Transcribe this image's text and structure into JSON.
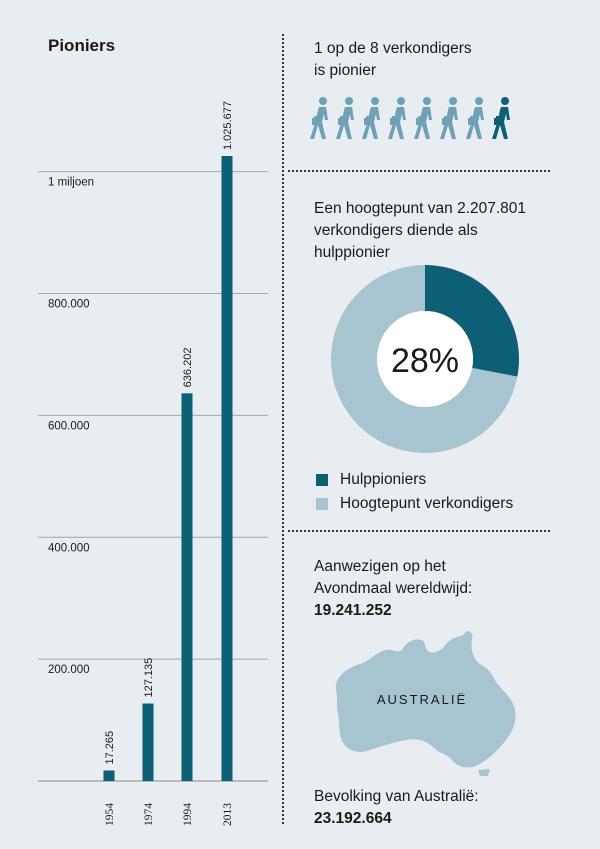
{
  "bar_section": {
    "title": "Pioniers"
  },
  "chart_data": [
    {
      "type": "bar",
      "title": "Pioniers",
      "categories": [
        "1954",
        "1974",
        "1994",
        "2013"
      ],
      "values": [
        17265,
        127135,
        636202,
        1025677
      ],
      "value_labels": [
        "17.265",
        "127.135",
        "636.202",
        "1.025.677"
      ],
      "y_ticks": [
        {
          "value": 200000,
          "label": "200.000"
        },
        {
          "value": 400000,
          "label": "400.000"
        },
        {
          "value": 600000,
          "label": "600.000"
        },
        {
          "value": 800000,
          "label": "800.000"
        },
        {
          "value": 1000000,
          "label": "1 miljoen"
        }
      ],
      "ylim": [
        0,
        1025677
      ],
      "grid": true,
      "color": "#0d5f75"
    },
    {
      "type": "pie",
      "title": "Een hoogtepunt van 2.207.801 verkondigers diende als hulppionier",
      "slices": [
        {
          "name": "Hulppioniers",
          "value": 28,
          "color": "#0d5f75"
        },
        {
          "name": "Hoogtepunt verkondigers",
          "value": 72,
          "color": "#a7c4d1"
        }
      ],
      "center_label": "28%",
      "legend": "bottom"
    }
  ],
  "pioneer_ratio": {
    "text_line1": "1 op de 8 verkondigers",
    "text_line2": "is pionier",
    "walker_icon": "person-walking-with-briefcase-icon",
    "total_walkers": 8,
    "highlighted": 1,
    "color_light": "#6fa0b5",
    "color_dark": "#0d5f75"
  },
  "aux_pioneer": {
    "line1": "Een hoogtepunt van 2.207.801",
    "line2": "verkondigers diende als",
    "line3": "hulppionier"
  },
  "memorial": {
    "line1": "Aanwezigen op het",
    "line2": "Avondmaal wereldwijd:",
    "count": "19.241.252",
    "map_label": "AUSTRALIË",
    "map_color": "#a7c4d1",
    "population_label": "Bevolking van Australië:",
    "population": "23.192.664"
  }
}
